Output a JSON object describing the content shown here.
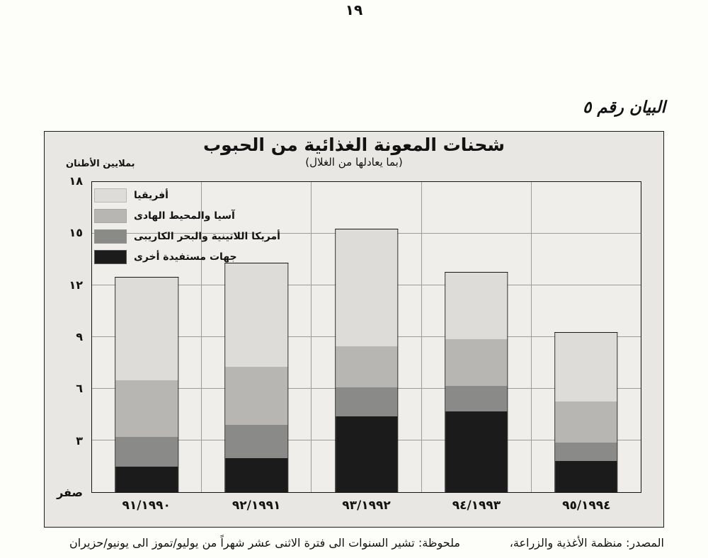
{
  "page": {
    "number": "١٩",
    "figure_label": "البيان رقم ٥"
  },
  "footer": {
    "note": "ملحوظة: تشير السنوات الى فترة الاثنى عشر شهراً من يوليو/تموز الى يونيو/حزيران",
    "source": "المصدر: منظمة الأغذية والزراعة،"
  },
  "chart_data": {
    "type": "bar",
    "stacked": true,
    "title": "شحنات المعونة الغذائية من الحبوب",
    "subtitle": "(بما يعادلها من الغلال)",
    "ylabel": "بملايين الأطنان",
    "ylim": [
      0,
      18
    ],
    "grid": true,
    "legend_position": "top-left",
    "stacking": "legend lists series top-to-bottom of bar; bars stack bottom-up in reverse legend order",
    "categories": [
      "٩١/١٩٩٠",
      "٩٢/١٩٩١",
      "٩٣/١٩٩٢",
      "٩٤/١٩٩٣",
      "٩٥/١٩٩٤"
    ],
    "y_ticks": [
      {
        "value": 18,
        "label": "١٨"
      },
      {
        "value": 15,
        "label": "١٥"
      },
      {
        "value": 12,
        "label": "١٢"
      },
      {
        "value": 9,
        "label": "٩"
      },
      {
        "value": 6,
        "label": "٦"
      },
      {
        "value": 3,
        "label": "٣"
      },
      {
        "value": 0,
        "label": "صفر"
      }
    ],
    "series": [
      {
        "name": "أفريقيا",
        "color": "#dddcd8",
        "values": [
          6.0,
          6.0,
          6.8,
          3.9,
          4.0
        ]
      },
      {
        "name": "آسيا والمحيط الهادى",
        "color": "#b7b6b2",
        "values": [
          3.3,
          3.4,
          2.4,
          2.7,
          2.4
        ]
      },
      {
        "name": "أمريكا اللاتينية والبحر الكاريبى",
        "color": "#8a8a88",
        "values": [
          1.7,
          1.9,
          1.7,
          1.5,
          1.1
        ]
      },
      {
        "name": "جهات مستفيدة أخرى",
        "color": "#1b1b1b",
        "values": [
          1.5,
          2.0,
          4.4,
          4.7,
          1.8
        ]
      }
    ],
    "totals": [
      12.5,
      13.3,
      15.3,
      12.8,
      9.3
    ]
  }
}
